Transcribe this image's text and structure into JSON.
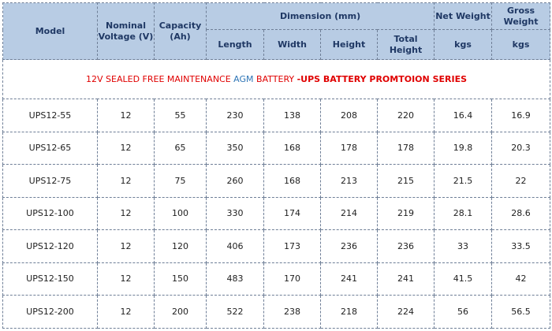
{
  "headers": {
    "model": "Model",
    "voltage": "Nominal Voltage (V)",
    "capacity": "Capacity (Ah)",
    "dimension": "Dimension (mm)",
    "length": "Length",
    "width": "Width",
    "height": "Height",
    "total_height": "Total Height",
    "net_weight": "Net Weight",
    "net_unit": "kgs",
    "gross_weight": "Gross Weight",
    "gross_unit": "kgs"
  },
  "title": {
    "part1": "12V  SEALED FREE MAINTENANCE ",
    "part2": "AGM",
    "part3": " BATTERY ",
    "part4": "-UPS BATTERY PROMTOION SERIES"
  },
  "rows": [
    {
      "model": "UPS12-55",
      "voltage": "12",
      "capacity": "55",
      "length": "230",
      "width": "138",
      "height": "208",
      "total_height": "220",
      "net": "16.4",
      "gross": "16.9"
    },
    {
      "model": "UPS12-65",
      "voltage": "12",
      "capacity": "65",
      "length": "350",
      "width": "168",
      "height": "178",
      "total_height": "178",
      "net": "19.8",
      "gross": "20.3"
    },
    {
      "model": "UPS12-75",
      "voltage": "12",
      "capacity": "75",
      "length": "260",
      "width": "168",
      "height": "213",
      "total_height": "215",
      "net": "21.5",
      "gross": "22"
    },
    {
      "model": "UPS12-100",
      "voltage": "12",
      "capacity": "100",
      "length": "330",
      "width": "174",
      "height": "214",
      "total_height": "219",
      "net": "28.1",
      "gross": "28.6"
    },
    {
      "model": "UPS12-120",
      "voltage": "12",
      "capacity": "120",
      "length": "406",
      "width": "173",
      "height": "236",
      "total_height": "236",
      "net": "33",
      "gross": "33.5"
    },
    {
      "model": "UPS12-150",
      "voltage": "12",
      "capacity": "150",
      "length": "483",
      "width": "170",
      "height": "241",
      "total_height": "241",
      "net": "41.5",
      "gross": "42"
    },
    {
      "model": "UPS12-200",
      "voltage": "12",
      "capacity": "200",
      "length": "522",
      "width": "238",
      "height": "218",
      "total_height": "224",
      "net": "56",
      "gross": "56.5"
    }
  ]
}
